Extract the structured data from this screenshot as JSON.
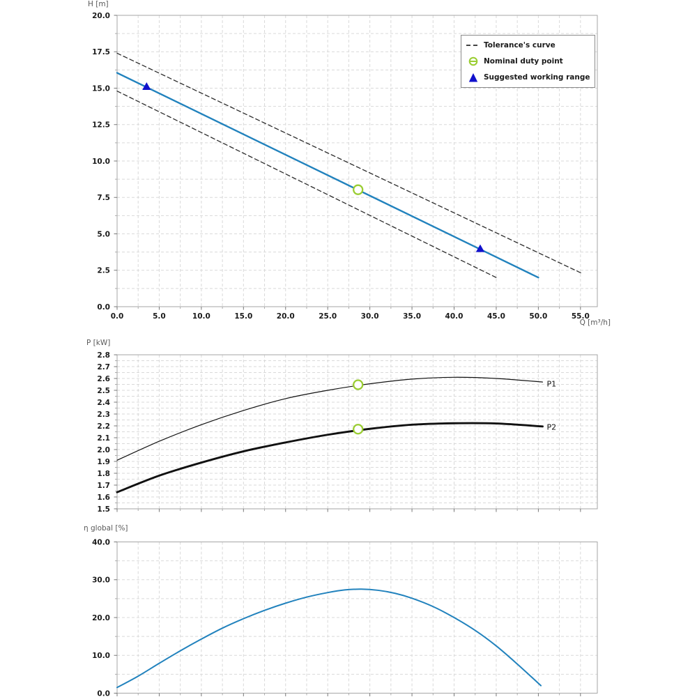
{
  "colors": {
    "curve_blue": "#2182bd",
    "duty_green": "#9acd32",
    "range_blue": "#1111cc",
    "tolerance_dash": "#2b2b2b",
    "power_black": "#111111",
    "grid": "#d9d9d9",
    "axis_box": "#a6a6a6"
  },
  "legend": {
    "items": [
      {
        "label": "Tolerance's curve",
        "marker": "dashed-line"
      },
      {
        "label": "Nominal duty point",
        "marker": "circle"
      },
      {
        "label": "Suggested working range",
        "marker": "triangle"
      }
    ]
  },
  "chart_data": [
    {
      "id": "head",
      "type": "line",
      "xlabel": "Q [m³/h]",
      "ylabel": "H [m]",
      "xlim": [
        0,
        57
      ],
      "ylim": [
        0,
        20
      ],
      "x_ticks": [
        0,
        5,
        10,
        15,
        20,
        25,
        30,
        35,
        40,
        45,
        50,
        55
      ],
      "x_tick_labels": [
        "0.0",
        "5.0",
        "10.0",
        "15.0",
        "20.0",
        "25.0",
        "30.0",
        "35.0",
        "40.0",
        "45.0",
        "50.0",
        "55.0"
      ],
      "y_ticks": [
        0,
        2.5,
        5,
        7.5,
        10,
        12.5,
        15,
        17.5,
        20
      ],
      "y_tick_labels": [
        "0.0",
        "2.5",
        "5.0",
        "7.5",
        "10.0",
        "12.5",
        "15.0",
        "17.5",
        "20.0"
      ],
      "grid": {
        "x_step": 2.5,
        "y_step": 1.25
      },
      "series": [
        {
          "name": "head-curve",
          "color": "#2182bd",
          "width": 2.4,
          "dash": null,
          "points": [
            [
              0,
              16.05
            ],
            [
              50,
              2.0
            ]
          ]
        },
        {
          "name": "tolerance-curve-upper",
          "color": "#2b2b2b",
          "width": 1.3,
          "dash": "6,4",
          "points": [
            [
              0,
              17.4
            ],
            [
              55.3,
              2.25
            ]
          ]
        },
        {
          "name": "tolerance-curve-lower",
          "color": "#2b2b2b",
          "width": 1.3,
          "dash": "6,4",
          "points": [
            [
              0,
              14.8
            ],
            [
              45,
              2.0
            ]
          ]
        }
      ],
      "markers": [
        {
          "type": "circle",
          "name": "nominal-duty-point",
          "x": 28.6,
          "y": 8.03
        },
        {
          "type": "triangle",
          "name": "working-range-min",
          "x": 3.5,
          "y": 15.08
        },
        {
          "type": "triangle",
          "name": "working-range-max",
          "x": 43.1,
          "y": 3.95
        }
      ],
      "annotations": []
    },
    {
      "id": "power",
      "type": "line",
      "xlabel": "",
      "ylabel": "P [kW]",
      "xlim": [
        0,
        57
      ],
      "ylim": [
        1.5,
        2.8
      ],
      "x_ticks": [
        0,
        5,
        10,
        15,
        20,
        25,
        30,
        35,
        40,
        45,
        50,
        55
      ],
      "y_ticks": [
        1.5,
        1.6,
        1.7,
        1.8,
        1.9,
        2.0,
        2.1,
        2.2,
        2.3,
        2.4,
        2.5,
        2.6,
        2.7,
        2.8
      ],
      "y_tick_labels": [
        "1.5",
        "1.6",
        "1.7",
        "1.8",
        "1.9",
        "2.0",
        "2.1",
        "2.2",
        "2.3",
        "2.4",
        "2.5",
        "2.6",
        "2.7",
        "2.8"
      ],
      "grid": {
        "x_step": 2.5,
        "y_step": 0.05
      },
      "series": [
        {
          "name": "P1",
          "color": "#111111",
          "width": 1.2,
          "dash": null,
          "points": [
            [
              0,
              1.91
            ],
            [
              5,
              2.07
            ],
            [
              10,
              2.21
            ],
            [
              15,
              2.33
            ],
            [
              20,
              2.43
            ],
            [
              25,
              2.5
            ],
            [
              30,
              2.555
            ],
            [
              35,
              2.595
            ],
            [
              40,
              2.61
            ],
            [
              45,
              2.6
            ],
            [
              50.5,
              2.57
            ]
          ]
        },
        {
          "name": "P2",
          "color": "#111111",
          "width": 2.9,
          "dash": null,
          "points": [
            [
              0,
              1.64
            ],
            [
              5,
              1.78
            ],
            [
              10,
              1.89
            ],
            [
              15,
              1.985
            ],
            [
              20,
              2.06
            ],
            [
              25,
              2.125
            ],
            [
              30,
              2.175
            ],
            [
              35,
              2.21
            ],
            [
              40,
              2.222
            ],
            [
              45,
              2.22
            ],
            [
              50.5,
              2.195
            ]
          ]
        }
      ],
      "markers": [
        {
          "type": "circle",
          "name": "duty-point-p1",
          "x": 28.6,
          "y": 2.547
        },
        {
          "type": "circle",
          "name": "duty-point-p2",
          "x": 28.6,
          "y": 2.172
        }
      ],
      "annotations": [
        {
          "label": "P1",
          "x": 51.0,
          "y": 2.555
        },
        {
          "label": "P2",
          "x": 51.0,
          "y": 2.19
        }
      ]
    },
    {
      "id": "eff",
      "type": "line",
      "xlabel": "",
      "ylabel": "η global [%]",
      "xlim": [
        0,
        57
      ],
      "ylim": [
        0,
        40
      ],
      "x_ticks": [
        0,
        5,
        10,
        15,
        20,
        25,
        30,
        35,
        40,
        45,
        50,
        55
      ],
      "y_ticks": [
        0,
        10,
        20,
        30,
        40
      ],
      "y_tick_labels": [
        "0.0",
        "10.0",
        "20.0",
        "30.0",
        "40.0"
      ],
      "grid": {
        "x_step": 2.5,
        "y_step": 5
      },
      "series": [
        {
          "name": "efficiency-curve",
          "color": "#2182bd",
          "width": 2.0,
          "dash": null,
          "points": [
            [
              0,
              1.5
            ],
            [
              2.5,
              4.5
            ],
            [
              5,
              7.9
            ],
            [
              7.5,
              11.2
            ],
            [
              10,
              14.3
            ],
            [
              12.5,
              17.2
            ],
            [
              15,
              19.7
            ],
            [
              17.5,
              21.9
            ],
            [
              20,
              23.8
            ],
            [
              22.5,
              25.4
            ],
            [
              25,
              26.6
            ],
            [
              27,
              27.3
            ],
            [
              29,
              27.5
            ],
            [
              31,
              27.2
            ],
            [
              33,
              26.4
            ],
            [
              35,
              25.1
            ],
            [
              37.5,
              22.9
            ],
            [
              40,
              20.0
            ],
            [
              42.5,
              16.6
            ],
            [
              45,
              12.5
            ],
            [
              47.5,
              7.7
            ],
            [
              50.3,
              2.0
            ]
          ]
        }
      ],
      "markers": [],
      "annotations": []
    }
  ]
}
